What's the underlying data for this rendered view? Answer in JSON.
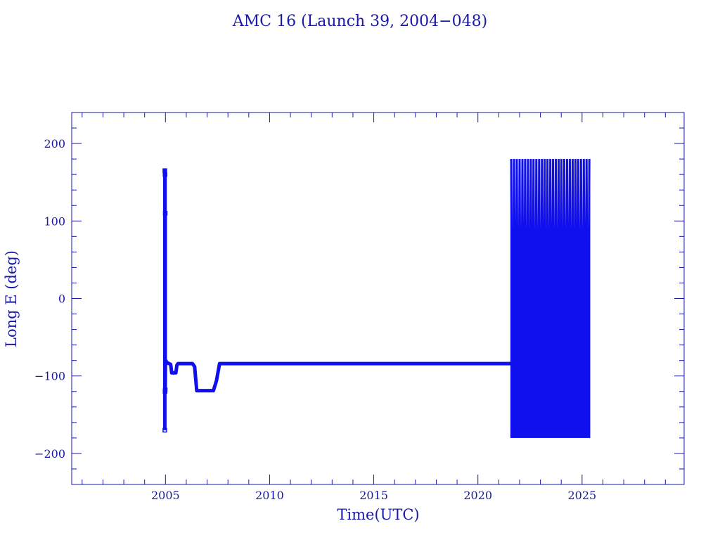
{
  "chart_data": {
    "type": "line",
    "title": "AMC 16 (Launch 39, 2004−048)",
    "xlabel": "Time(UTC)",
    "ylabel": "Long E (deg)",
    "xlim": [
      2000.5,
      2029.9
    ],
    "ylim": [
      -240,
      240
    ],
    "x_ticks": [
      2005,
      2010,
      2015,
      2020,
      2025
    ],
    "x_tick_labels": [
      "2005",
      "2010",
      "2015",
      "2020",
      "2025"
    ],
    "y_ticks": [
      -200,
      -100,
      0,
      100,
      200
    ],
    "y_tick_labels": [
      "−200",
      "−100",
      "0",
      "100",
      "200"
    ],
    "grid": false,
    "colors": {
      "axes": "#1a1aa6",
      "series": "#1010ee"
    },
    "series": [
      {
        "x": [
          2004.97,
          2004.97,
          2004.98,
          2004.98,
          2004.99,
          2004.99,
          2005.0,
          2005.05,
          2005.1,
          2005.25,
          2005.3,
          2005.5,
          2005.55,
          2005.6,
          2006.3,
          2006.4,
          2006.5,
          2007.3,
          2007.45,
          2007.6,
          2010.0,
          2015.0,
          2021.5,
          2021.6
        ],
        "y": [
          -170,
          165,
          160,
          -120,
          110,
          -118,
          -82,
          -84,
          -83,
          -85,
          -96,
          -96,
          -86,
          -84,
          -84,
          -88,
          -119,
          -119,
          -106,
          -84,
          -84,
          -84,
          -84,
          -84
        ]
      }
    ],
    "oscillation": {
      "x_start": 2021.6,
      "x_end": 2025.35,
      "y_min": -180,
      "y_max": 180,
      "cycles": 28
    }
  }
}
